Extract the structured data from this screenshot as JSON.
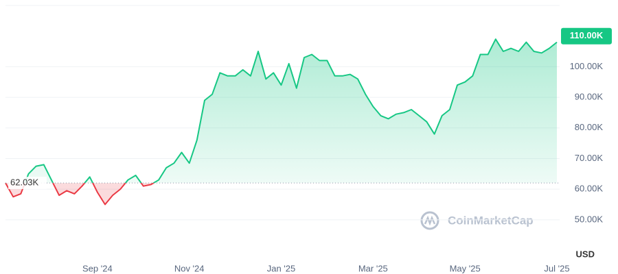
{
  "chart_data": {
    "type": "line",
    "categories": [
      null,
      null,
      null,
      null,
      null,
      null,
      null,
      null,
      null,
      null,
      null,
      null,
      "Sep '24",
      null,
      null,
      null,
      null,
      null,
      null,
      null,
      null,
      null,
      null,
      null,
      "Nov '24",
      null,
      null,
      null,
      null,
      null,
      null,
      null,
      null,
      null,
      null,
      null,
      "Jan '25",
      null,
      null,
      null,
      null,
      null,
      null,
      null,
      null,
      null,
      null,
      null,
      "Mar '25",
      null,
      null,
      null,
      null,
      null,
      null,
      null,
      null,
      null,
      null,
      null,
      "May '25",
      null,
      null,
      null,
      null,
      null,
      null,
      null,
      null,
      null,
      null,
      null,
      "Jul '25"
    ],
    "values": [
      62.03,
      57.5,
      58.5,
      65,
      67.5,
      68,
      63,
      58,
      59.5,
      58.5,
      61,
      64,
      59,
      55,
      58,
      60,
      63,
      64.5,
      61,
      61.5,
      63,
      67,
      68.5,
      72,
      68.5,
      76,
      89,
      91,
      98,
      97,
      97,
      99,
      97,
      105,
      96,
      98,
      94,
      101,
      93,
      103,
      104,
      102,
      102,
      97,
      97,
      97.5,
      96,
      91,
      87,
      84,
      83,
      84.5,
      85,
      86,
      84,
      82,
      78,
      84,
      86,
      94,
      95,
      97,
      104,
      104,
      109,
      105,
      106,
      105,
      108,
      105,
      104.5,
      106,
      108
    ],
    "ylim": [
      39,
      120
    ],
    "yticks": [
      {
        "value": 50,
        "label": "50.00K"
      },
      {
        "value": 60,
        "label": "60.00K"
      },
      {
        "value": 70,
        "label": "70.00K"
      },
      {
        "value": 80,
        "label": "80.00K"
      },
      {
        "value": 90,
        "label": "90.00K"
      },
      {
        "value": 100,
        "label": "100.00K"
      }
    ],
    "baseline": {
      "value": 62.03,
      "label": "62.03K"
    },
    "current": {
      "value": 110,
      "label": "110.00K"
    },
    "up_color": "#16c784",
    "down_color": "#ea3943",
    "currency": "USD",
    "watermark": "CoinMarketCap",
    "grid": true
  }
}
